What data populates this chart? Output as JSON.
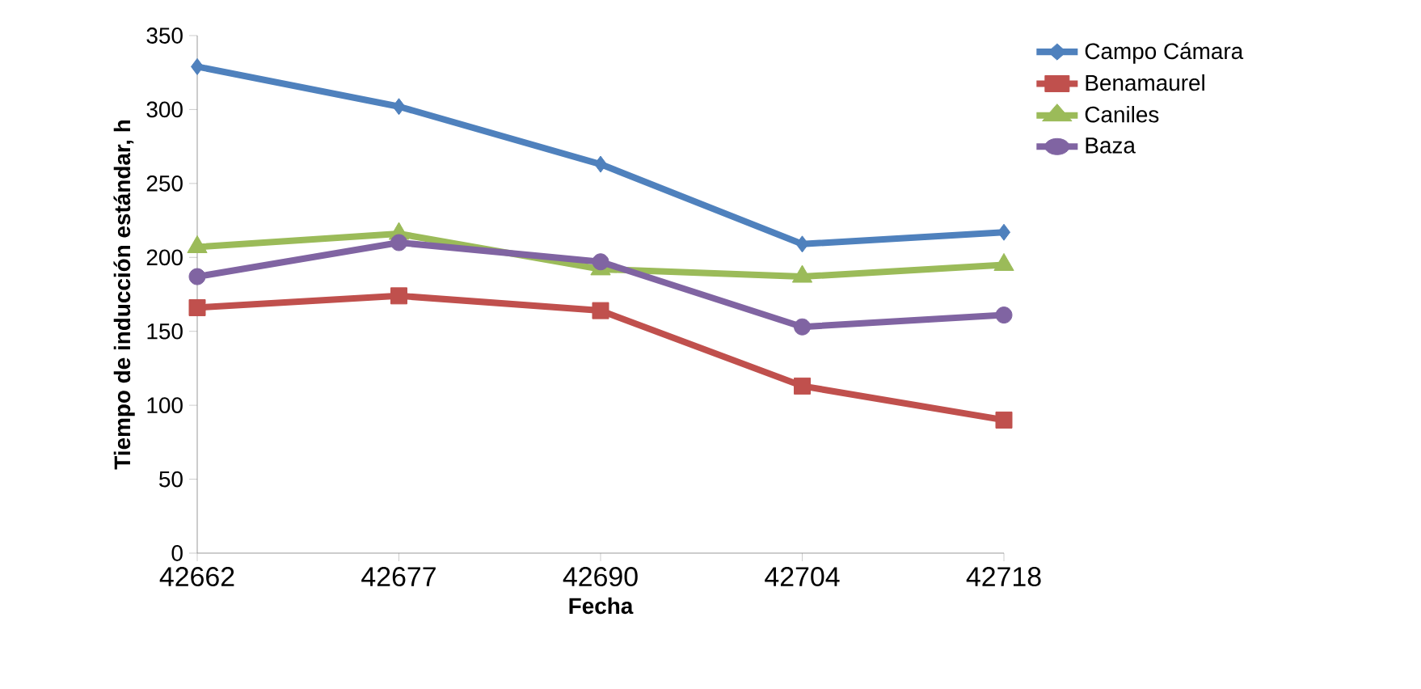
{
  "chart_data": {
    "type": "line",
    "xlabel": "Fecha",
    "ylabel": "Tiempo de inducción estándar, h",
    "categories": [
      "42662",
      "42677",
      "42690",
      "42704",
      "42718"
    ],
    "series": [
      {
        "name": "Campo Cámara",
        "color": "#4f81bd",
        "marker": "diamond",
        "values": [
          329,
          302,
          263,
          209,
          217
        ]
      },
      {
        "name": "Benamaurel",
        "color": "#c0504d",
        "marker": "square",
        "values": [
          166,
          174,
          164,
          113,
          90
        ]
      },
      {
        "name": "Caniles",
        "color": "#9bbb59",
        "marker": "triangle",
        "values": [
          207,
          216,
          192,
          187,
          195
        ]
      },
      {
        "name": "Baza",
        "color": "#8064a2",
        "marker": "circle",
        "values": [
          187,
          210,
          197,
          153,
          161
        ]
      }
    ],
    "ylim": [
      0,
      350
    ],
    "yticks": [
      0,
      50,
      100,
      150,
      200,
      250,
      300,
      350
    ],
    "legend": "right",
    "grid": false
  }
}
